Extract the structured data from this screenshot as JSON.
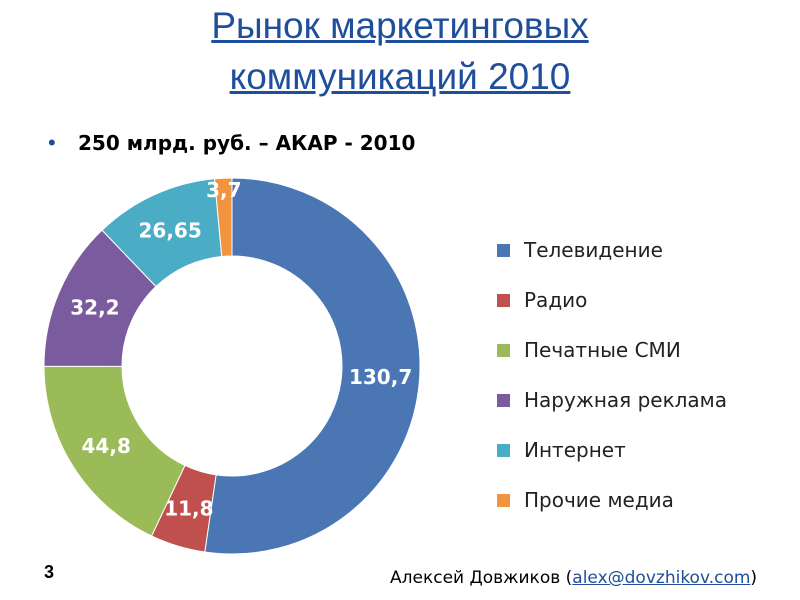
{
  "title": {
    "line1": "Рынок маркетинговых",
    "line2": "коммуникаций 2010"
  },
  "subtitle": "250 млрд. руб. – АКАР - 2010",
  "page_number": "3",
  "author": {
    "name": "Алексей Довжиков (",
    "email": "alex@dovzhikov.com",
    "close": ")"
  },
  "chart_data": {
    "type": "donut",
    "categories": [
      "Телевидение",
      "Радио",
      "Печатные СМИ",
      "Наружная реклама",
      "Интернет",
      "Прочие медиа"
    ],
    "values": [
      130.7,
      11.8,
      44.8,
      32.2,
      26.65,
      3.7
    ],
    "data_labels": [
      "130,7",
      "11,8",
      "44,8",
      "32,2",
      "26,65",
      "3,7"
    ],
    "colors": [
      "#4a77b4",
      "#c0504d",
      "#9bbb59",
      "#7a5c9e",
      "#4bacc6",
      "#f29340"
    ],
    "legend_position": "right"
  }
}
